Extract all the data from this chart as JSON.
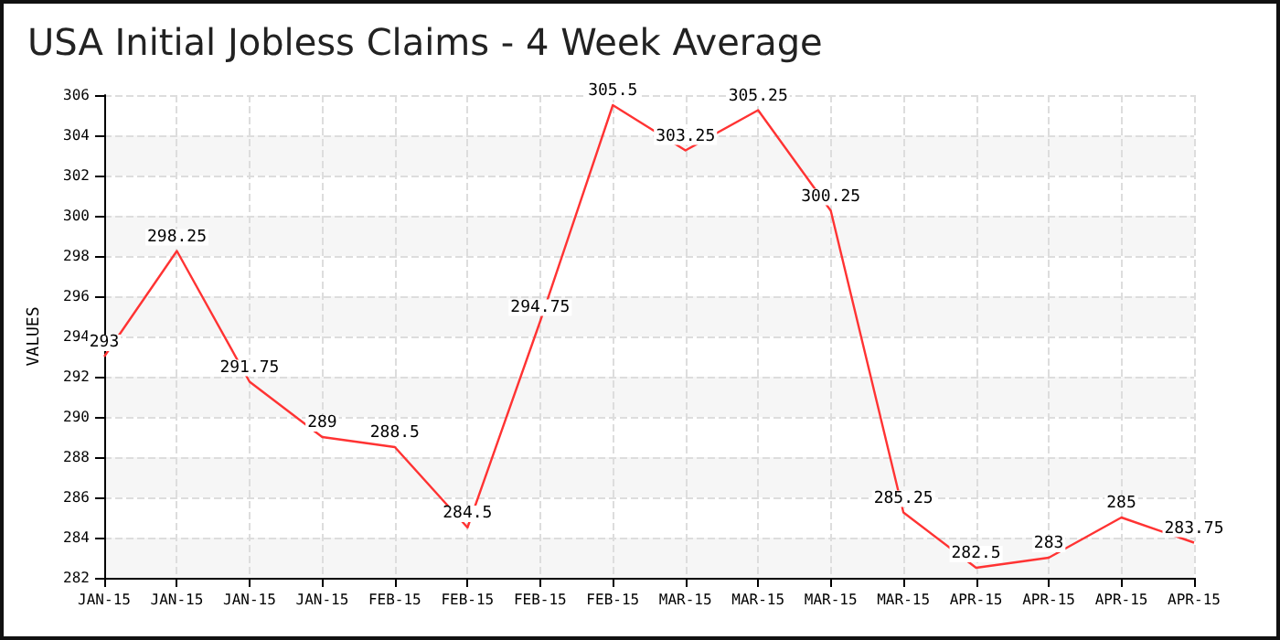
{
  "chart_data": {
    "type": "line",
    "title": "USA Initial Jobless Claims - 4 Week Average",
    "ylabel": "VALUES",
    "categories": [
      "JAN-15",
      "JAN-15",
      "JAN-15",
      "JAN-15",
      "FEB-15",
      "FEB-15",
      "FEB-15",
      "FEB-15",
      "MAR-15",
      "MAR-15",
      "MAR-15",
      "MAR-15",
      "APR-15",
      "APR-15",
      "APR-15",
      "APR-15"
    ],
    "series": [
      {
        "color": "#ff3333",
        "values": [
          293,
          298.25,
          291.75,
          289,
          288.5,
          284.5,
          294.75,
          305.5,
          303.25,
          305.25,
          300.25,
          285.25,
          282.5,
          283,
          285,
          283.75
        ]
      }
    ],
    "ylim": [
      282,
      306
    ],
    "yticks": [
      282,
      284,
      286,
      288,
      290,
      292,
      294,
      296,
      298,
      300,
      302,
      304,
      306
    ],
    "grid": true,
    "data_labels": true,
    "marker": "none",
    "line_style": "solid"
  }
}
